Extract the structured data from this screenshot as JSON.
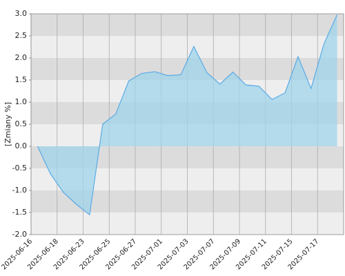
{
  "chart_data": {
    "type": "area",
    "y_label": "[Zmiany %]",
    "categories": [
      "2025-06-16",
      null,
      "2025-06-18",
      null,
      "2025-06-23",
      null,
      "2025-06-25",
      null,
      "2025-06-27",
      null,
      "2025-07-01",
      null,
      "2025-07-03",
      null,
      "2025-07-07",
      null,
      "2025-07-09",
      null,
      "2025-07-11",
      null,
      "2025-07-15",
      null,
      "2025-07-17",
      null
    ],
    "values": [
      0,
      -0.63,
      -1.05,
      -1.32,
      -1.55,
      0.5,
      0.73,
      1.48,
      1.65,
      1.69,
      1.6,
      1.62,
      2.26,
      1.67,
      1.41,
      1.68,
      1.39,
      1.36,
      1.06,
      1.21,
      2.03,
      1.31,
      2.33,
      2.98
    ],
    "color": "#5aaae6",
    "fill_color": "#9fd4ea",
    "ylim": [
      -2,
      3
    ],
    "yticks": [
      {
        "value": 3,
        "label": "3.0"
      },
      {
        "value": 2.5,
        "label": "2.5"
      },
      {
        "value": 2,
        "label": "2.0"
      },
      {
        "value": 1.5,
        "label": "1.5"
      },
      {
        "value": 1,
        "label": "1.0"
      },
      {
        "value": 0.5,
        "label": "0.5"
      },
      {
        "value": 0,
        "label": "0.0"
      },
      {
        "value": -0.5,
        "label": "-0.5"
      },
      {
        "value": -1,
        "label": "-1.0"
      },
      {
        "value": -1.5,
        "label": "-1.5"
      },
      {
        "value": -2,
        "label": "-2.0"
      }
    ],
    "grid": true
  }
}
